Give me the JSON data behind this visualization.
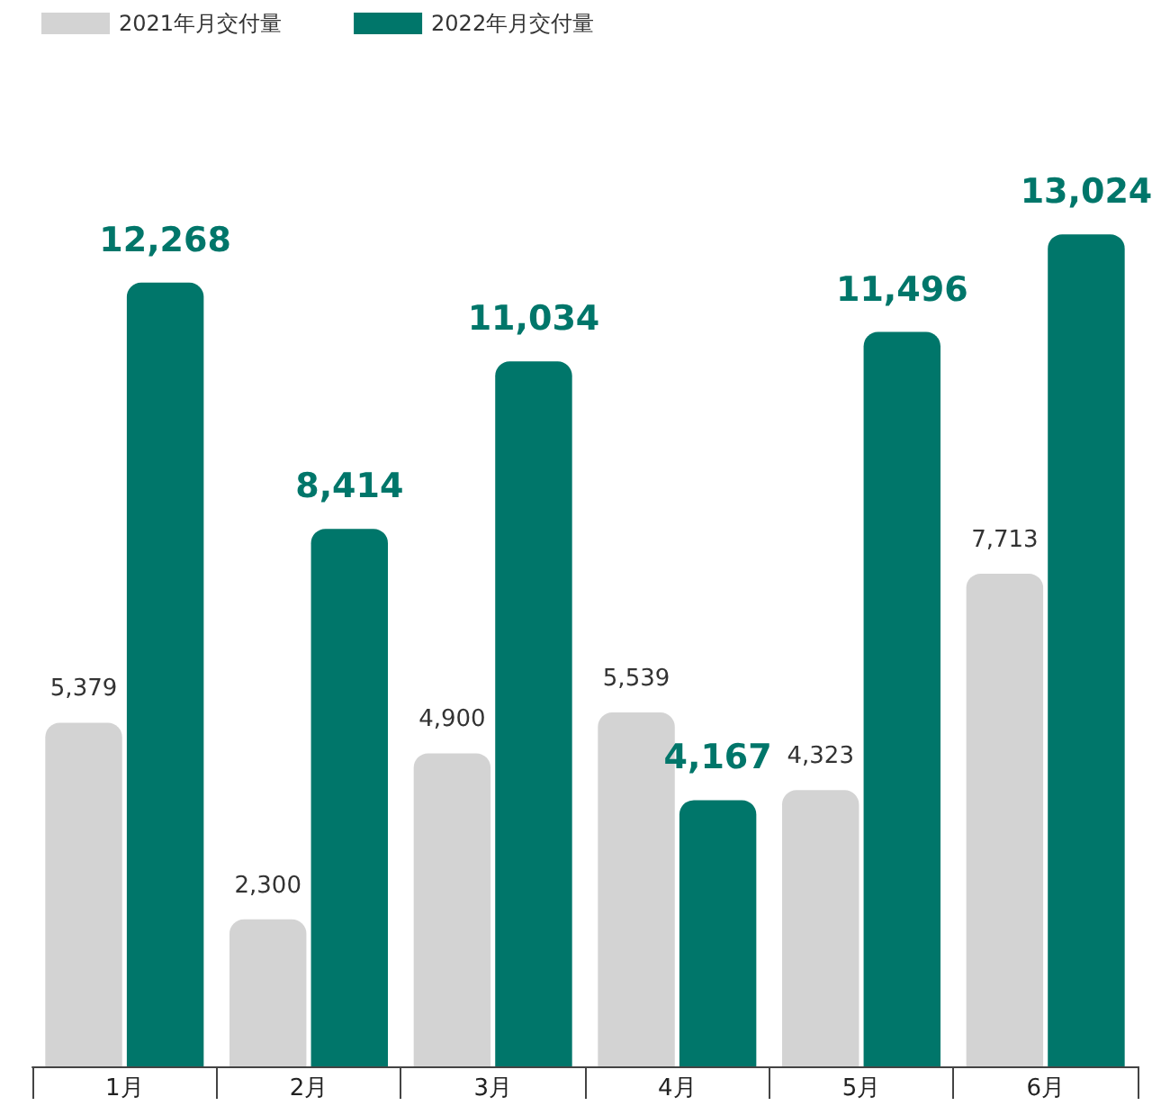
{
  "chart_data": {
    "type": "bar",
    "categories": [
      "1月",
      "2月",
      "3月",
      "4月",
      "5月",
      "6月"
    ],
    "series": [
      {
        "name": "2021年月交付量",
        "color": "#d3d3d3",
        "values": [
          5379,
          2300,
          4900,
          5539,
          4323,
          7713
        ],
        "value_labels": [
          "5,379",
          "2,300",
          "4,900",
          "5,539",
          "4,323",
          "7,713"
        ]
      },
      {
        "name": "2022年月交付量",
        "color": "#00766a",
        "values": [
          12268,
          8414,
          11034,
          4167,
          11496,
          13024
        ],
        "value_labels": [
          "12,268",
          "8,414",
          "11,034",
          "4,167",
          "11,496",
          "13,024"
        ]
      }
    ],
    "legend": "top left",
    "grid": false
  }
}
